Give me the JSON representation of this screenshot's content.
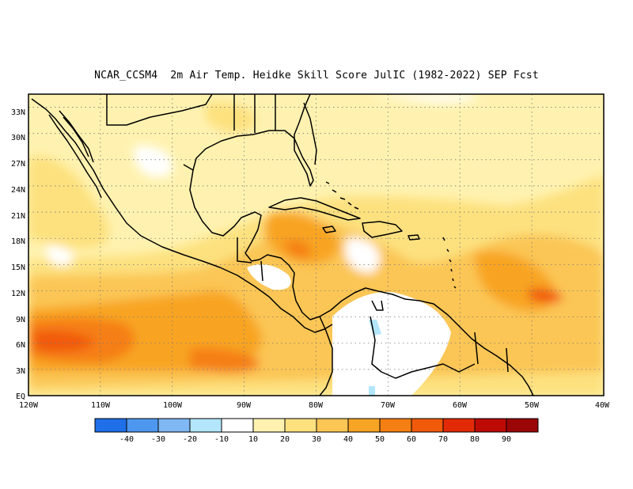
{
  "title": "NCAR_CCSM4  2m Air Temp. Heidke Skill Score JulIC (1982-2022) SEP Fcst",
  "map": {
    "lat_labels": [
      "33N",
      "30N",
      "27N",
      "24N",
      "21N",
      "18N",
      "15N",
      "12N",
      "9N",
      "6N",
      "3N",
      "EQ"
    ],
    "lon_labels": [
      "120W",
      "110W",
      "100W",
      "90W",
      "80W",
      "70W",
      "60W",
      "50W",
      "40W"
    ],
    "extent": {
      "lon_min": -120,
      "lon_max": -40,
      "lat_min": 0,
      "lat_max": 34.5
    },
    "grid": "dotted"
  },
  "colorbar": {
    "colors": [
      "#1f6fe8",
      "#4e97ef",
      "#7fb8f3",
      "#b3e6fb",
      "#ffffff",
      "#fff2b0",
      "#fde17f",
      "#fbc654",
      "#f8a424",
      "#f57f12",
      "#f15a0a",
      "#e32a06",
      "#bd0a05",
      "#9a0606"
    ],
    "labels": [
      "-40",
      "-30",
      "-20",
      "-10",
      "10",
      "20",
      "30",
      "40",
      "50",
      "60",
      "70",
      "80",
      "90"
    ]
  }
}
